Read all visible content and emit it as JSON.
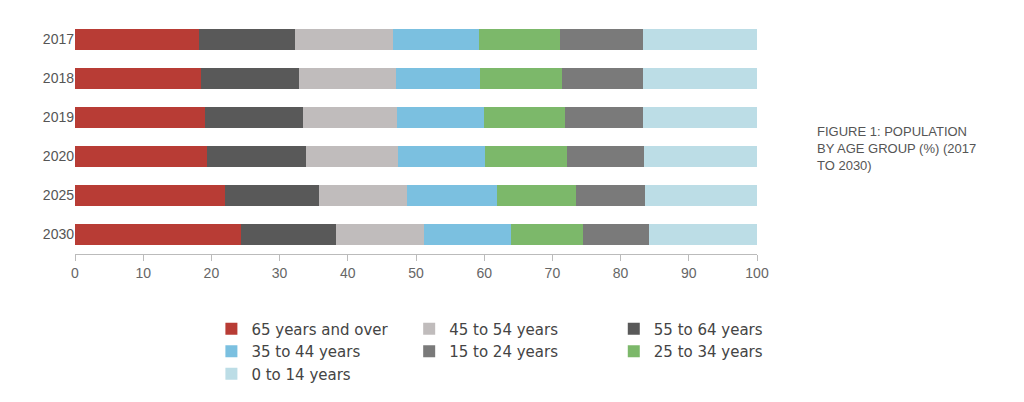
{
  "chart_data": {
    "type": "bar",
    "title": "FIGURE 1: POPULATION BY AGE GROUP (%) (2017 TO 2030)",
    "orientation": "horizontal",
    "stacked": true,
    "grid": false,
    "legend": "bottom",
    "categories": [
      "2017",
      "2018",
      "2019",
      "2020",
      "2025",
      "2030"
    ],
    "xlim": [
      0,
      100
    ],
    "xticks": [
      0,
      10,
      20,
      30,
      40,
      50,
      60,
      70,
      80,
      90,
      100
    ],
    "series": [
      {
        "name": "0 to 14 years",
        "color": "#bcdde6",
        "values": [
          16.7,
          16.7,
          16.7,
          16.6,
          16.4,
          15.9
        ]
      },
      {
        "name": "15 to 24 years",
        "color": "#7a7a7a",
        "values": [
          12.2,
          11.9,
          11.4,
          11.3,
          10.2,
          9.6
        ]
      },
      {
        "name": "25 to 34 years",
        "color": "#7cb86a",
        "values": [
          11.9,
          12.0,
          12.0,
          12.0,
          11.5,
          10.6
        ]
      },
      {
        "name": "35 to 44 years",
        "color": "#7bc0e0",
        "values": [
          12.5,
          12.4,
          12.7,
          12.7,
          13.2,
          12.8
        ]
      },
      {
        "name": "45 to 54 years",
        "color": "#c0bcbc",
        "values": [
          14.5,
          14.2,
          13.8,
          13.5,
          12.9,
          12.9
        ]
      },
      {
        "name": "55 to 64 years",
        "color": "#595959",
        "values": [
          14.0,
          14.3,
          14.4,
          14.5,
          13.8,
          13.8
        ]
      },
      {
        "name": "65 years and over",
        "color": "#b83c35",
        "values": [
          18.2,
          18.5,
          19.0,
          19.4,
          22.0,
          24.4
        ]
      }
    ]
  }
}
